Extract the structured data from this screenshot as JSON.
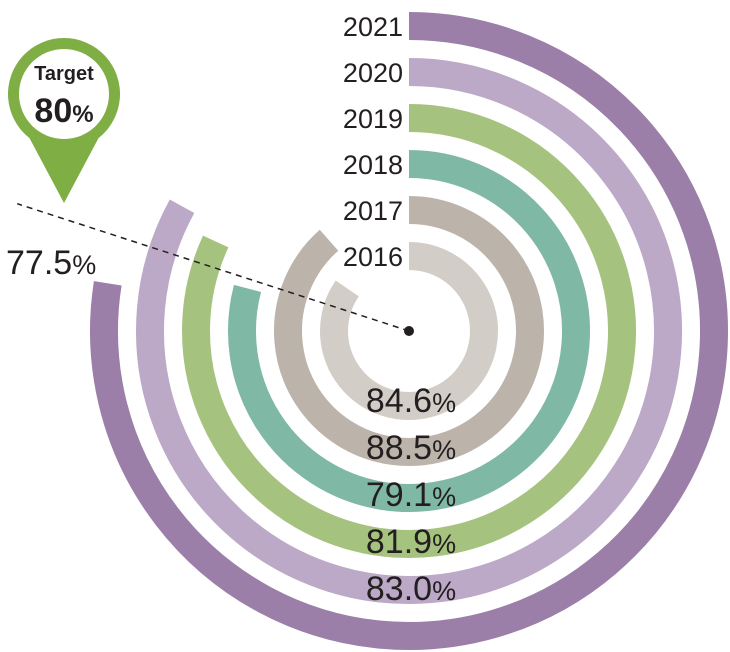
{
  "chart_data": {
    "type": "radial-bar",
    "series": [
      {
        "year": "2016",
        "value": 84.6,
        "label": "84.6%",
        "color": "#d3cdc8"
      },
      {
        "year": "2017",
        "value": 88.5,
        "label": "88.5%",
        "color": "#bcb3ab"
      },
      {
        "year": "2018",
        "value": 79.1,
        "label": "79.1%",
        "color": "#7fb9a6"
      },
      {
        "year": "2019",
        "value": 81.9,
        "label": "81.9%",
        "color": "#a6c27f"
      },
      {
        "year": "2020",
        "value": 83.0,
        "label": "83.0%",
        "color": "#bca9c7"
      },
      {
        "year": "2021",
        "value": 77.5,
        "label": "77.5%",
        "color": "#9b7fa8"
      }
    ],
    "target": {
      "title": "Target",
      "value": 80,
      "label_number": "80",
      "label_unit": "%",
      "color": "#7fae45"
    },
    "max": 100
  }
}
